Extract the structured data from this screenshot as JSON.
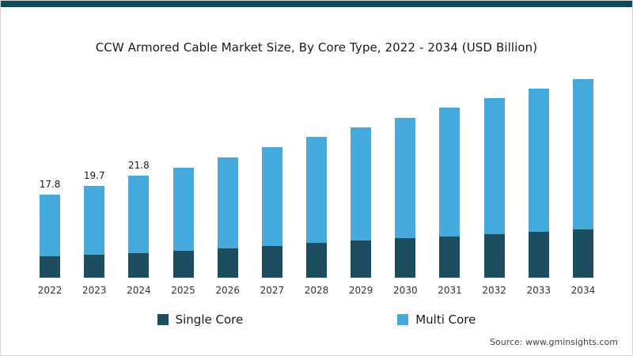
{
  "accent_color": "#0e4b59",
  "chart_data": {
    "type": "bar",
    "stacked": true,
    "title": "CCW Armored Cable Market Size, By Core Type, 2022 - 2034 (USD Billion)",
    "categories": [
      "2022",
      "2023",
      "2024",
      "2025",
      "2026",
      "2027",
      "2028",
      "2029",
      "2030",
      "2031",
      "2032",
      "2033",
      "2034"
    ],
    "series": [
      {
        "name": "Single Core",
        "color": "#1d4e5f",
        "values": [
          4.6,
          4.9,
          5.2,
          5.7,
          6.2,
          6.8,
          7.4,
          7.9,
          8.4,
          8.9,
          9.4,
          9.8,
          10.3
        ]
      },
      {
        "name": "Multi Core",
        "color": "#45a9dc",
        "values": [
          13.2,
          14.8,
          16.6,
          17.9,
          19.5,
          21.2,
          22.8,
          24.3,
          25.9,
          27.5,
          29.1,
          30.7,
          32.2
        ]
      }
    ],
    "totals": [
      17.8,
      19.7,
      21.8,
      23.6,
      25.7,
      28.0,
      30.2,
      32.2,
      34.3,
      36.4,
      38.5,
      40.5,
      42.5
    ],
    "value_labels": [
      "17.8",
      "19.7",
      "21.8",
      "",
      "",
      "",
      "",
      "",
      "",
      "",
      "",
      "",
      ""
    ],
    "xlabel": "",
    "ylabel": "",
    "ylim": [
      0,
      44
    ],
    "grid": false,
    "legend_position": "bottom"
  },
  "source_text": "Source: www.gminsights.com"
}
